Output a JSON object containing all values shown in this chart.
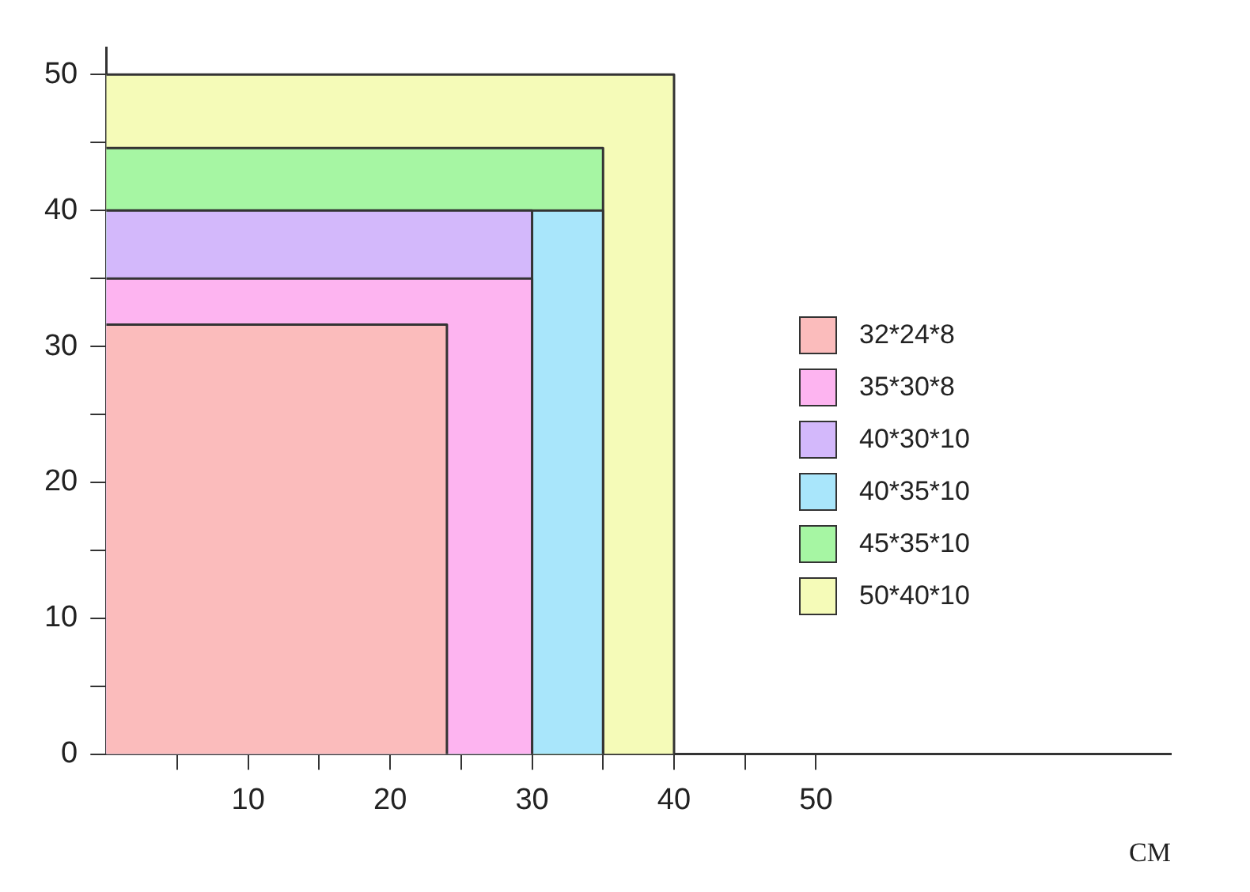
{
  "chart_data": {
    "type": "area",
    "xlabel": "CM",
    "xlim": [
      0,
      75
    ],
    "ylim": [
      0,
      52
    ],
    "xticks": [
      {
        "value": 5,
        "label": null
      },
      10,
      {
        "value": 15,
        "label": null
      },
      20,
      {
        "value": 25,
        "label": null
      },
      30,
      {
        "value": 35,
        "label": null
      },
      40,
      {
        "value": 45,
        "label": null
      },
      50
    ],
    "yticks": [
      0,
      {
        "value": 5,
        "label": null
      },
      10,
      {
        "value": 15,
        "label": null
      },
      20,
      {
        "value": 25,
        "label": null
      },
      30,
      {
        "value": 35,
        "label": null
      },
      40,
      {
        "value": 45,
        "label": null
      },
      50
    ],
    "grid": false,
    "legend": "right",
    "marker": "none",
    "line_style": "solid",
    "series": [
      {
        "name": "32*24*8",
        "color": "#fbbcbc",
        "x": [
          0,
          24,
          24
        ],
        "values": [
          31.6,
          31.6,
          0
        ]
      },
      {
        "name": "35*30*8",
        "color": "#fdb4f0",
        "x": [
          0,
          30,
          30
        ],
        "values": [
          35,
          35,
          0
        ]
      },
      {
        "name": "40*30*10",
        "color": "#d3b8fb",
        "x": [
          0,
          30,
          30
        ],
        "values": [
          40,
          40,
          0
        ]
      },
      {
        "name": "40*35*10",
        "color": "#a9e6fb",
        "x": [
          0,
          35,
          35
        ],
        "values": [
          40,
          40,
          0
        ]
      },
      {
        "name": "45*35*10",
        "color": "#a6f6a3",
        "x": [
          0,
          35,
          35
        ],
        "values": [
          44.6,
          44.6,
          0
        ]
      },
      {
        "name": "50*40*10",
        "color": "#f5fbb8",
        "x": [
          0,
          40,
          40
        ],
        "values": [
          50,
          50,
          0
        ]
      }
    ]
  }
}
